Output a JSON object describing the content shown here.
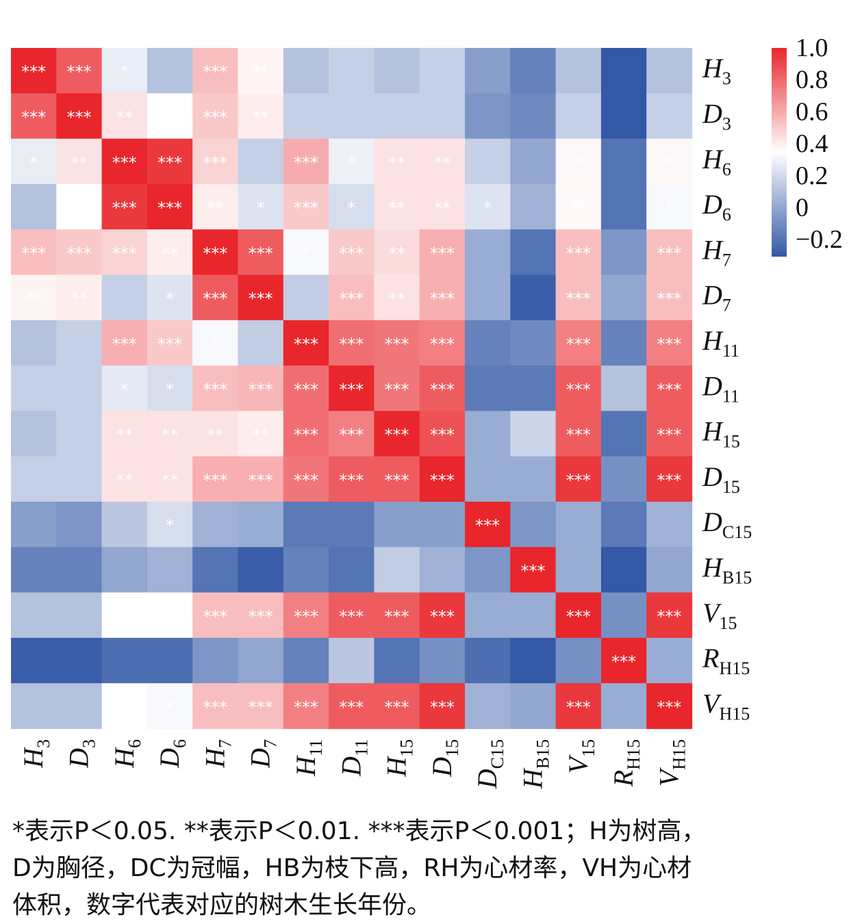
{
  "chart_data": {
    "type": "heatmap",
    "variables": [
      "H3",
      "D3",
      "H6",
      "D6",
      "H7",
      "D7",
      "H11",
      "D11",
      "H15",
      "D15",
      "DC15",
      "HB15",
      "V15",
      "RH15",
      "VH15"
    ],
    "labels": [
      {
        "base": "H",
        "sub": "3"
      },
      {
        "base": "D",
        "sub": "3"
      },
      {
        "base": "H",
        "sub": "6"
      },
      {
        "base": "D",
        "sub": "6"
      },
      {
        "base": "H",
        "sub": "7"
      },
      {
        "base": "D",
        "sub": "7"
      },
      {
        "base": "H",
        "sub": "11"
      },
      {
        "base": "D",
        "sub": "11"
      },
      {
        "base": "H",
        "sub": "15"
      },
      {
        "base": "D",
        "sub": "15"
      },
      {
        "base": "D",
        "sub": "C15"
      },
      {
        "base": "H",
        "sub": "B15"
      },
      {
        "base": "V",
        "sub": "15"
      },
      {
        "base": "R",
        "sub": "H15"
      },
      {
        "base": "V",
        "sub": "H15"
      }
    ],
    "values": [
      [
        1.0,
        0.85,
        0.33,
        0.18,
        0.58,
        0.43,
        0.18,
        0.23,
        0.18,
        0.23,
        0.05,
        -0.05,
        0.18,
        -0.2,
        0.18
      ],
      [
        0.85,
        1.0,
        0.48,
        0.4,
        0.55,
        0.45,
        0.23,
        0.23,
        0.23,
        0.23,
        0.02,
        -0.02,
        0.23,
        -0.2,
        0.23
      ],
      [
        0.33,
        0.48,
        1.0,
        0.95,
        0.52,
        0.23,
        0.63,
        0.35,
        0.48,
        0.48,
        0.23,
        0.08,
        0.42,
        -0.1,
        0.42
      ],
      [
        0.18,
        0.4,
        0.95,
        1.0,
        0.45,
        0.3,
        0.55,
        0.28,
        0.48,
        0.48,
        0.3,
        0.12,
        0.42,
        -0.1,
        0.38
      ],
      [
        0.58,
        0.55,
        0.52,
        0.45,
        1.0,
        0.85,
        0.38,
        0.55,
        0.5,
        0.62,
        0.1,
        -0.1,
        0.58,
        0.02,
        0.58
      ],
      [
        0.43,
        0.45,
        0.23,
        0.3,
        0.85,
        1.0,
        0.22,
        0.58,
        0.48,
        0.62,
        0.1,
        -0.18,
        0.58,
        0.08,
        0.58
      ],
      [
        0.18,
        0.23,
        0.62,
        0.55,
        0.38,
        0.22,
        1.0,
        0.8,
        0.78,
        0.75,
        -0.05,
        -0.02,
        0.75,
        -0.05,
        0.75
      ],
      [
        0.23,
        0.23,
        0.32,
        0.28,
        0.58,
        0.6,
        0.8,
        1.0,
        0.78,
        0.85,
        -0.08,
        -0.08,
        0.85,
        0.18,
        0.85
      ],
      [
        0.18,
        0.23,
        0.48,
        0.48,
        0.48,
        0.45,
        0.8,
        0.75,
        1.0,
        0.88,
        0.1,
        0.25,
        0.85,
        -0.1,
        0.85
      ],
      [
        0.23,
        0.23,
        0.48,
        0.48,
        0.62,
        0.62,
        0.78,
        0.85,
        0.85,
        1.0,
        0.1,
        0.1,
        0.95,
        0.0,
        0.95
      ],
      [
        0.05,
        0.02,
        0.2,
        0.28,
        0.12,
        0.1,
        -0.08,
        -0.08,
        0.05,
        0.05,
        1.0,
        0.02,
        0.1,
        -0.08,
        0.12
      ],
      [
        -0.05,
        -0.05,
        0.08,
        0.12,
        -0.1,
        -0.18,
        -0.05,
        -0.1,
        0.22,
        0.12,
        0.02,
        1.0,
        0.1,
        -0.22,
        0.08
      ],
      [
        0.18,
        0.18,
        0.4,
        0.4,
        0.58,
        0.58,
        0.75,
        0.85,
        0.85,
        0.95,
        0.1,
        0.1,
        1.0,
        0.0,
        0.95
      ],
      [
        -0.18,
        -0.18,
        -0.12,
        -0.12,
        0.02,
        0.08,
        -0.05,
        0.2,
        -0.1,
        0.0,
        -0.12,
        -0.22,
        0.0,
        1.0,
        0.1
      ],
      [
        0.18,
        0.18,
        0.4,
        0.38,
        0.58,
        0.58,
        0.75,
        0.85,
        0.85,
        0.95,
        0.12,
        0.08,
        0.95,
        0.1,
        1.0
      ]
    ],
    "significance": [
      [
        "***",
        "***",
        "*",
        "",
        "***",
        "**",
        "",
        "",
        "",
        "",
        "",
        "",
        "",
        "",
        ""
      ],
      [
        "***",
        "***",
        "**",
        "**",
        "***",
        "**",
        "",
        "",
        "",
        "",
        "",
        "",
        "",
        "",
        ""
      ],
      [
        "*",
        "**",
        "***",
        "***",
        "***",
        "",
        "***",
        "*",
        "**",
        "**",
        "",
        "",
        "**",
        "",
        "**"
      ],
      [
        "",
        "**",
        "***",
        "***",
        "**",
        "*",
        "***",
        "*",
        "**",
        "**",
        "*",
        "",
        "**",
        "",
        "*"
      ],
      [
        "***",
        "***",
        "***",
        "**",
        "***",
        "***",
        "*",
        "***",
        "**",
        "***",
        "",
        "",
        "***",
        "",
        "***"
      ],
      [
        "**",
        "**",
        "",
        "*",
        "***",
        "***",
        "",
        "***",
        "**",
        "***",
        "",
        "",
        "***",
        "",
        "***"
      ],
      [
        "",
        "",
        "***",
        "***",
        "*",
        "",
        "***",
        "***",
        "***",
        "***",
        "",
        "",
        "***",
        "",
        "***"
      ],
      [
        "",
        "",
        "*",
        "*",
        "***",
        "***",
        "***",
        "***",
        "***",
        "***",
        "",
        "",
        "***",
        "",
        "***"
      ],
      [
        "",
        "",
        "**",
        "**",
        "**",
        "**",
        "***",
        "***",
        "***",
        "***",
        "",
        "",
        "***",
        "",
        "***"
      ],
      [
        "",
        "",
        "**",
        "**",
        "***",
        "***",
        "***",
        "***",
        "***",
        "***",
        "",
        "",
        "***",
        "",
        "***"
      ],
      [
        "",
        "",
        "",
        "*",
        "",
        "",
        "",
        "",
        "",
        "",
        "***",
        "",
        "",
        "",
        ""
      ],
      [
        "",
        "",
        "",
        "",
        "",
        "",
        "",
        "",
        "",
        "",
        "",
        "***",
        "",
        "",
        ""
      ],
      [
        "",
        "",
        "**",
        "**",
        "***",
        "***",
        "***",
        "***",
        "***",
        "***",
        "",
        "",
        "***",
        "",
        "***"
      ],
      [
        "",
        "",
        "",
        "",
        "",
        "",
        "",
        "",
        "",
        "",
        "",
        "",
        "",
        "***",
        ""
      ],
      [
        "",
        "",
        "**",
        "*",
        "***",
        "***",
        "***",
        "***",
        "***",
        "***",
        "",
        "",
        "***",
        "",
        "***"
      ]
    ],
    "colorbar": {
      "ticks": [
        "1.0",
        "0.8",
        "0.6",
        "0.4",
        "0.2",
        "0",
        "−0.2"
      ],
      "range": [
        -0.2,
        1.0
      ],
      "colors": {
        "low": "#3358a6",
        "mid": "#ffffff",
        "high": "#e8262b"
      },
      "mid_value": 0.4
    },
    "grid": false
  },
  "footnote": {
    "line1": "*表示P＜0.05. **表示P＜0.01. ***表示P＜0.001；H为树高，",
    "line2": "D为胸径，DC为冠幅，HB为枝下高，RH为心材率，VH为心材",
    "line3": "体积，数字代表对应的树木生长年份。"
  }
}
